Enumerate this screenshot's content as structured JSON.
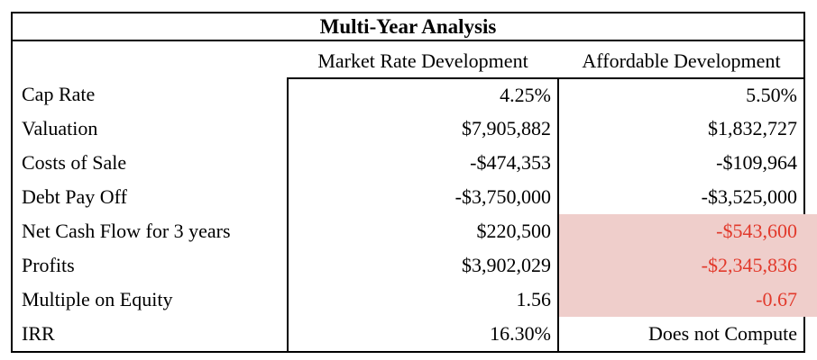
{
  "title": "Multi-Year Analysis",
  "columns": [
    "Market Rate Development",
    "Affordable Development"
  ],
  "rows": [
    {
      "label": "Cap Rate",
      "market": "4.25%",
      "affordable": "5.50%",
      "highlight": false
    },
    {
      "label": "Valuation",
      "market": "$7,905,882",
      "affordable": "$1,832,727",
      "highlight": false
    },
    {
      "label": "Costs of Sale",
      "market": "-$474,353",
      "affordable": "-$109,964",
      "highlight": false
    },
    {
      "label": "Debt Pay Off",
      "market": "-$3,750,000",
      "affordable": "-$3,525,000",
      "highlight": false
    },
    {
      "label": "Net Cash Flow for 3 years",
      "market": "$220,500",
      "affordable": "-$543,600",
      "highlight": true
    },
    {
      "label": "Profits",
      "market": "$3,902,029",
      "affordable": "-$2,345,836",
      "highlight": true
    },
    {
      "label": "Multiple on Equity",
      "market": "1.56",
      "affordable": "-0.67",
      "highlight": true
    },
    {
      "label": "IRR",
      "market": "16.30%",
      "affordable": "Does not Compute",
      "highlight": false
    }
  ],
  "colors": {
    "border": "#000000",
    "highlight_bg": "#efcecb",
    "highlight_text": "#e2392b"
  }
}
